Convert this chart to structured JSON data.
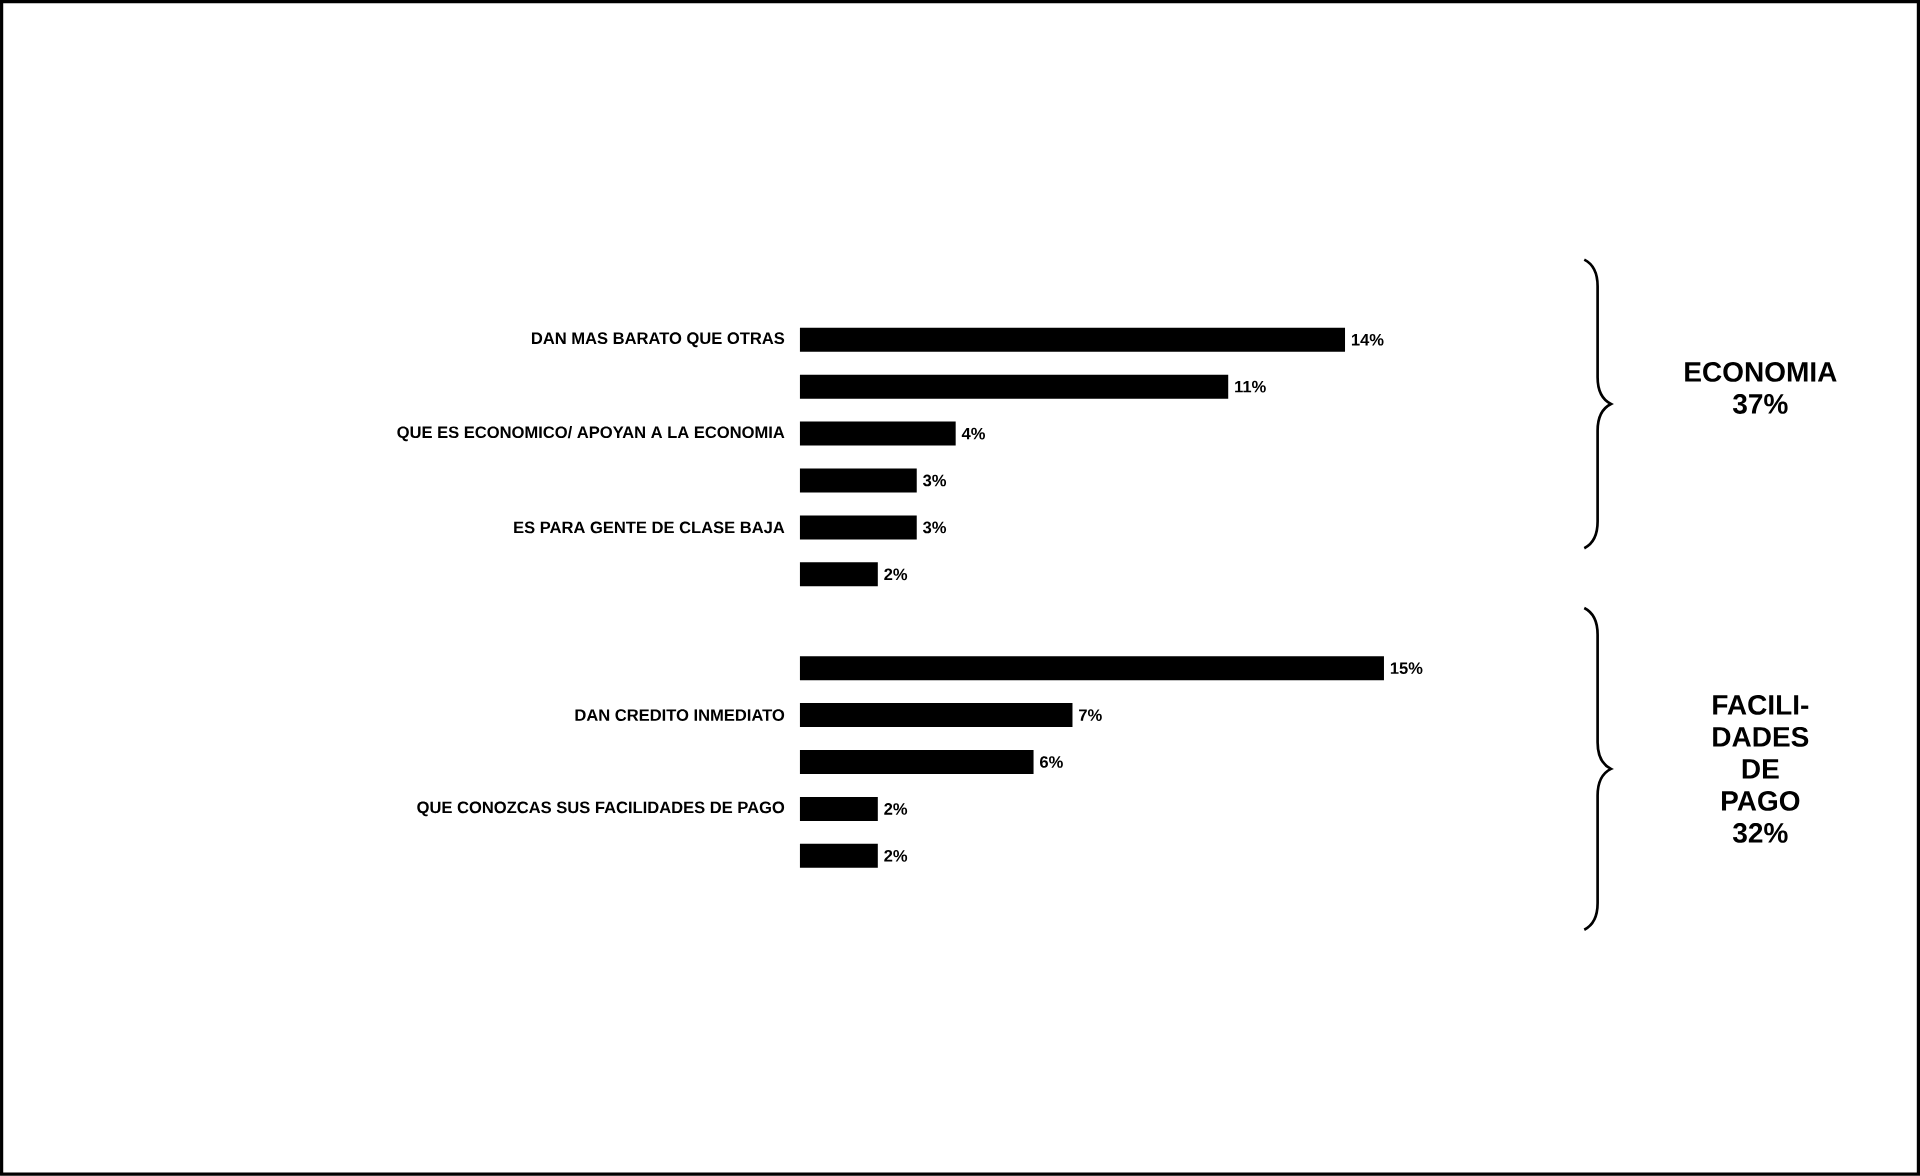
{
  "chart_data": {
    "type": "bar",
    "orientation": "horizontal",
    "categories": [
      "DAN MAS BARATO QUE OTRAS",
      null,
      "QUE ES ECONOMICO/ APOYAN A LA ECONOMIA",
      null,
      "ES PARA GENTE DE CLASE BAJA",
      null,
      null,
      null,
      "DAN CREDITO INMEDIATO",
      null,
      "QUE CONOZCAS SUS FACILIDADES DE PAGO",
      null
    ],
    "values": [
      14,
      11,
      4,
      3,
      3,
      2,
      null,
      15,
      7,
      6,
      2,
      2
    ],
    "value_labels": [
      "14%",
      "11%",
      "4%",
      "3%",
      "3%",
      "2%",
      null,
      "15%",
      "7%",
      "6%",
      "2%",
      "2%"
    ],
    "colors": [
      "#000000",
      "#000000",
      "#000000",
      "#000000",
      "#000000",
      "#000000",
      "#000000",
      "#000000",
      "#000000",
      "#000000",
      "#000000",
      "#000000"
    ],
    "annotations": [
      "ECONOMIA 37%",
      "FACILI- DADES DE PAGO 32%"
    ]
  }
}
